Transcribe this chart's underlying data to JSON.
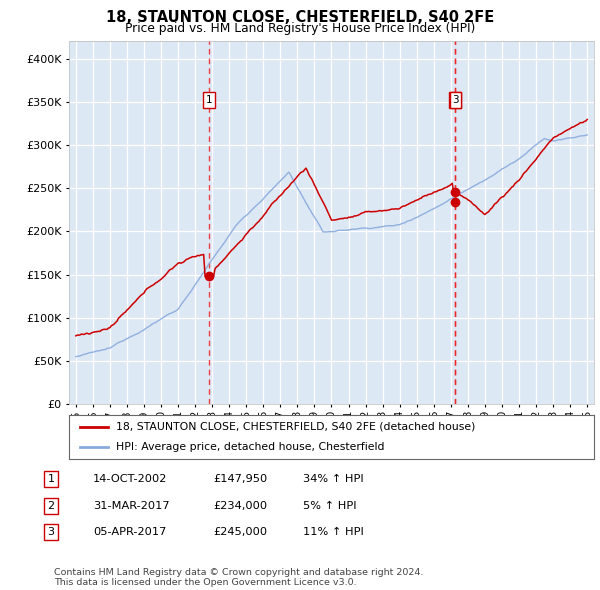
{
  "title": "18, STAUNTON CLOSE, CHESTERFIELD, S40 2FE",
  "subtitle": "Price paid vs. HM Land Registry's House Price Index (HPI)",
  "property_label": "18, STAUNTON CLOSE, CHESTERFIELD, S40 2FE (detached house)",
  "hpi_label": "HPI: Average price, detached house, Chesterfield",
  "copyright": "Contains HM Land Registry data © Crown copyright and database right 2024.\nThis data is licensed under the Open Government Licence v3.0.",
  "transactions": [
    {
      "num": 1,
      "date": "14-OCT-2002",
      "price": "£147,950",
      "pct": "34% ↑ HPI",
      "year": 2002.8
    },
    {
      "num": 2,
      "date": "31-MAR-2017",
      "price": "£234,000",
      "pct": "5% ↑ HPI",
      "year": 2017.24
    },
    {
      "num": 3,
      "date": "05-APR-2017",
      "price": "£245,000",
      "pct": "11% ↑ HPI",
      "year": 2017.27
    }
  ],
  "trans_prices": [
    147950,
    234000,
    245000
  ],
  "price_color": "#cc0000",
  "hpi_color": "#88aadd",
  "vline_color": "#ee2222",
  "box_edgecolor": "#cc0000",
  "bg_color": "#dde8f5",
  "grid_color": "#ffffff",
  "ylim": [
    0,
    420000
  ],
  "yticks": [
    0,
    50000,
    100000,
    150000,
    200000,
    250000,
    300000,
    350000,
    400000
  ],
  "xlim_left": 1994.6,
  "xlim_right": 2025.4
}
